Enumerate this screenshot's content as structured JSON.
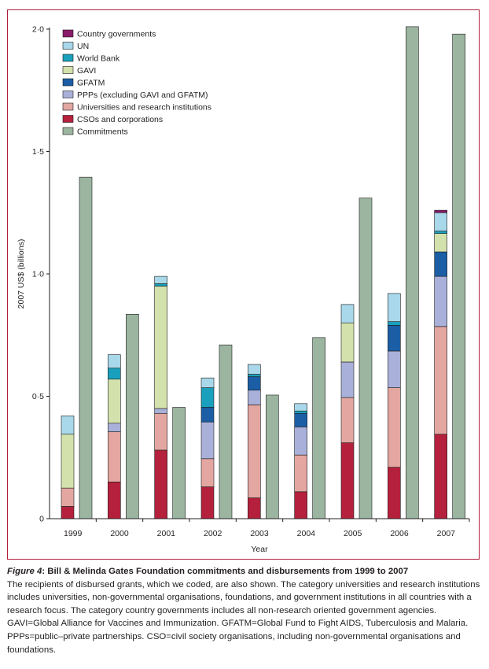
{
  "caption": {
    "figure_number": "Figure 4",
    "title": "Bill & Melinda Gates Foundation commitments and disbursements from 1999 to 2007",
    "text": "The recipients of disbursed grants, which we coded, are also shown. The category universities and research institutions includes universities, non-governmental organisations, foundations, and government institutions in all countries with a research focus. The category country governments includes all non-research oriented government agencies. GAVI=Global Alliance for Vaccines and Immunization. GFATM=Global Fund to Fight AIDS, Tuberculosis and Malaria. PPPs=public–private partnerships. CSO=civil society organisations, including non-governmental organisations and foundations."
  },
  "chart_data": {
    "type": "bar",
    "title": "",
    "xlabel": "Year",
    "ylabel": "2007 US$ (billions)",
    "ylim": [
      0,
      2.0
    ],
    "yticks": [
      0,
      0.5,
      1.0,
      1.5,
      2.0
    ],
    "ytick_labels": [
      "0",
      "0·5",
      "1·0",
      "1·5",
      "2·0"
    ],
    "grid": false,
    "legend_position": "top-left",
    "categories": [
      "1999",
      "2000",
      "2001",
      "2002",
      "2003",
      "2004",
      "2005",
      "2006",
      "2007"
    ],
    "stacked_series": [
      {
        "name": "CSOs and corporations",
        "color": "#b5203d",
        "values": [
          0.05,
          0.15,
          0.28,
          0.13,
          0.085,
          0.11,
          0.31,
          0.21,
          0.345
        ]
      },
      {
        "name": "Universities and research institutions",
        "color": "#e3a6a0",
        "values": [
          0.075,
          0.205,
          0.15,
          0.115,
          0.38,
          0.15,
          0.185,
          0.325,
          0.44
        ]
      },
      {
        "name": "PPPs (excluding GAVI and GFATM)",
        "color": "#a9b1da",
        "values": [
          0,
          0.035,
          0.02,
          0.15,
          0.06,
          0.115,
          0.145,
          0.15,
          0.205
        ]
      },
      {
        "name": "GFATM",
        "color": "#1b5ea5",
        "values": [
          0,
          0,
          0,
          0.06,
          0.055,
          0.055,
          0,
          0.105,
          0.1
        ]
      },
      {
        "name": "GAVI",
        "color": "#d3e2ad",
        "values": [
          0.22,
          0.18,
          0.5,
          0,
          0,
          0,
          0.16,
          0,
          0.075
        ]
      },
      {
        "name": "World Bank",
        "color": "#1aa0bc",
        "values": [
          0,
          0.045,
          0.01,
          0.08,
          0.01,
          0.01,
          0,
          0.015,
          0.01
        ]
      },
      {
        "name": "UN",
        "color": "#a8d8e9",
        "values": [
          0.075,
          0.055,
          0.03,
          0.04,
          0.04,
          0.03,
          0.075,
          0.115,
          0.075
        ]
      },
      {
        "name": "Country governments",
        "color": "#8a1a6a",
        "values": [
          0,
          0,
          0,
          0,
          0,
          0,
          0,
          0,
          0.01
        ]
      }
    ],
    "commitments": {
      "name": "Commitments",
      "color": "#9cb5a0",
      "values": [
        1.395,
        0.835,
        0.455,
        0.71,
        0.505,
        0.74,
        1.31,
        2.01,
        1.98
      ]
    },
    "legend_order": [
      "Country governments",
      "UN",
      "World Bank",
      "GAVI",
      "GFATM",
      "PPPs (excluding GAVI and GFATM)",
      "Universities and research institutions",
      "CSOs and corporations",
      "Commitments"
    ]
  }
}
